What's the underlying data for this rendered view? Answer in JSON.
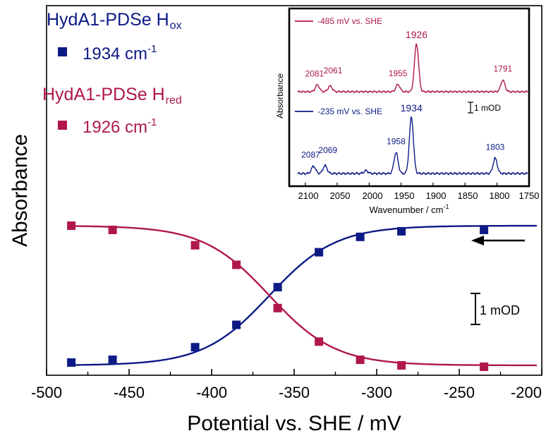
{
  "chart_data": [
    {
      "type": "scatter",
      "title": "",
      "xlabel": "Potential vs. SHE / mV",
      "ylabel": "Absorbance",
      "xlim": [
        -500,
        -200
      ],
      "xticks": [
        -500,
        -450,
        -400,
        -350,
        -300,
        -250,
        -200
      ],
      "ylim": [
        0,
        1
      ],
      "grid": false,
      "legend_position": "top-left",
      "series": [
        {
          "name": "HydA1-PDSe H",
          "name_subscript": "ox",
          "marker_label": "1934 cm",
          "marker_label_superscript": "-1",
          "color": "#0d1a85",
          "x": [
            -485,
            -460,
            -410,
            -385,
            -360,
            -335,
            -310,
            -285,
            -235
          ],
          "y": [
            0.02,
            0.04,
            0.13,
            0.29,
            0.56,
            0.81,
            0.92,
            0.96,
            0.97
          ],
          "fit": {
            "model": "nernst",
            "midpoint_mV": -365,
            "slope_mV": 20
          }
        },
        {
          "name": "HydA1-PDSe H",
          "name_subscript": "red",
          "marker_label": "1926 cm",
          "marker_label_superscript": "-1",
          "color": "#b0174c",
          "x": [
            -485,
            -460,
            -410,
            -385,
            -360,
            -335,
            -310,
            -285,
            -235
          ],
          "y": [
            1.0,
            0.97,
            0.86,
            0.72,
            0.41,
            0.17,
            0.04,
            0.0,
            -0.01
          ],
          "fit": {
            "model": "nernst",
            "midpoint_mV": -365,
            "slope_mV": 20
          }
        }
      ],
      "annotations": {
        "arrow_direction": "left",
        "scale_bar_label": "1 mOD"
      }
    },
    {
      "type": "line",
      "title": "",
      "xlabel": "Wavenumber / cm",
      "xlabel_superscript": "-1",
      "ylabel": "Absorbance",
      "xlim": [
        2125,
        1750
      ],
      "xticks": [
        2100,
        2050,
        2000,
        1950,
        1900,
        1850,
        1800,
        1750
      ],
      "scale_bar_label": "1 mOD",
      "series": [
        {
          "name": "-485 mV vs. SHE",
          "color": "#b0174c",
          "peaks": [
            {
              "x": 2081,
              "label": "2081",
              "height": 0.14
            },
            {
              "x": 2061,
              "label": "2061",
              "height": 0.12
            },
            {
              "x": 1955,
              "label": "1955",
              "height": 0.15
            },
            {
              "x": 1926,
              "label": "1926",
              "height": 1.0
            },
            {
              "x": 1791,
              "label": "1791",
              "height": 0.24
            }
          ]
        },
        {
          "name": "-235 mV vs. SHE",
          "color": "#0d1a85",
          "peaks": [
            {
              "x": 2087,
              "label": "2087",
              "height": 0.13
            },
            {
              "x": 2069,
              "label": "2069",
              "height": 0.14
            },
            {
              "x": 2005,
              "label": "",
              "height": 0.05
            },
            {
              "x": 1958,
              "label": "1958",
              "height": 0.37
            },
            {
              "x": 1934,
              "label": "1934",
              "height": 1.0
            },
            {
              "x": 1803,
              "label": "1803",
              "height": 0.27
            }
          ]
        }
      ]
    }
  ]
}
